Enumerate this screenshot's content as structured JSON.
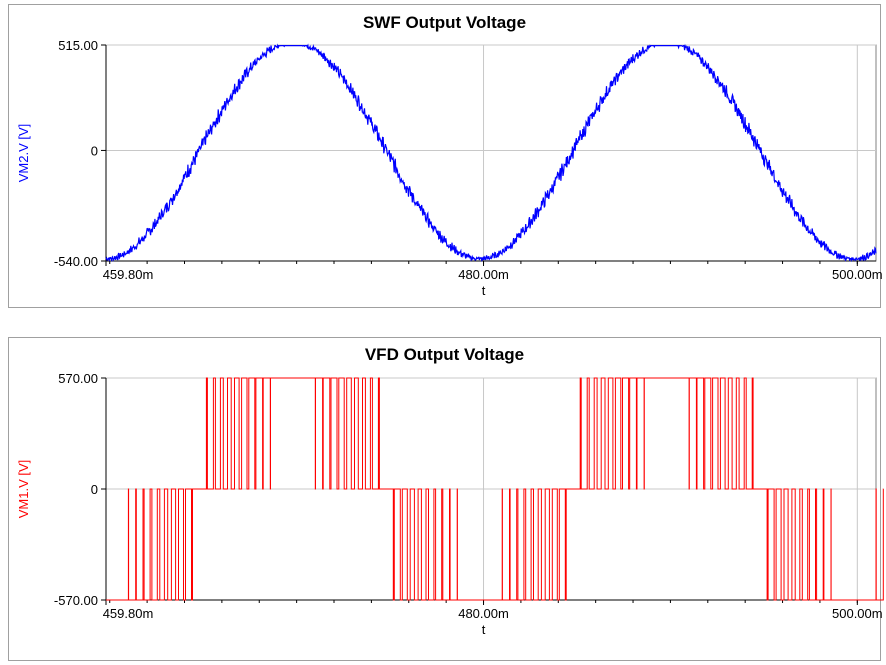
{
  "chart_data": [
    {
      "type": "line",
      "title": "SWF Output Voltage",
      "xlabel": "t",
      "ylabel": "VM2.V [V]",
      "color": "#0000ff",
      "xlim": [
        459.8,
        501.0
      ],
      "ylim": [
        -540,
        515
      ],
      "xticks": [
        459.8,
        480.0,
        500.0
      ],
      "xtick_labels": [
        "459.80m",
        "480.00m",
        "500.00m"
      ],
      "yticks": [
        515,
        0,
        -540
      ],
      "ytick_labels": [
        "515.00",
        "0",
        "-540.00"
      ],
      "grid": true,
      "series": [
        {
          "name": "VM2.V",
          "description": "approximately sinusoidal voltage with switching ripple, period ~20 ms",
          "amplitude": 530,
          "period_ms": 20.0,
          "phase_ms": 464.8,
          "ripple": 25
        }
      ]
    },
    {
      "type": "line",
      "title": "VFD Output Voltage",
      "xlabel": "t",
      "ylabel": "VM1.V [V]",
      "color": "#ff0000",
      "xlim": [
        459.8,
        501.0
      ],
      "ylim": [
        -570,
        570
      ],
      "xticks": [
        459.8,
        480.0,
        500.0
      ],
      "xtick_labels": [
        "459.80m",
        "480.00m",
        "500.00m"
      ],
      "yticks": [
        570,
        0,
        -570
      ],
      "ytick_labels": [
        "570.00",
        "0",
        "-570.00"
      ],
      "grid": true,
      "series": [
        {
          "name": "VM1.V",
          "description": "PWM square-pulse voltage switching between 0 and +/-570 V, period ~20 ms",
          "level": 570,
          "period_ms": 20.0,
          "phase_ms": 464.8,
          "switching_frequency_khz": 2.5
        }
      ]
    }
  ]
}
